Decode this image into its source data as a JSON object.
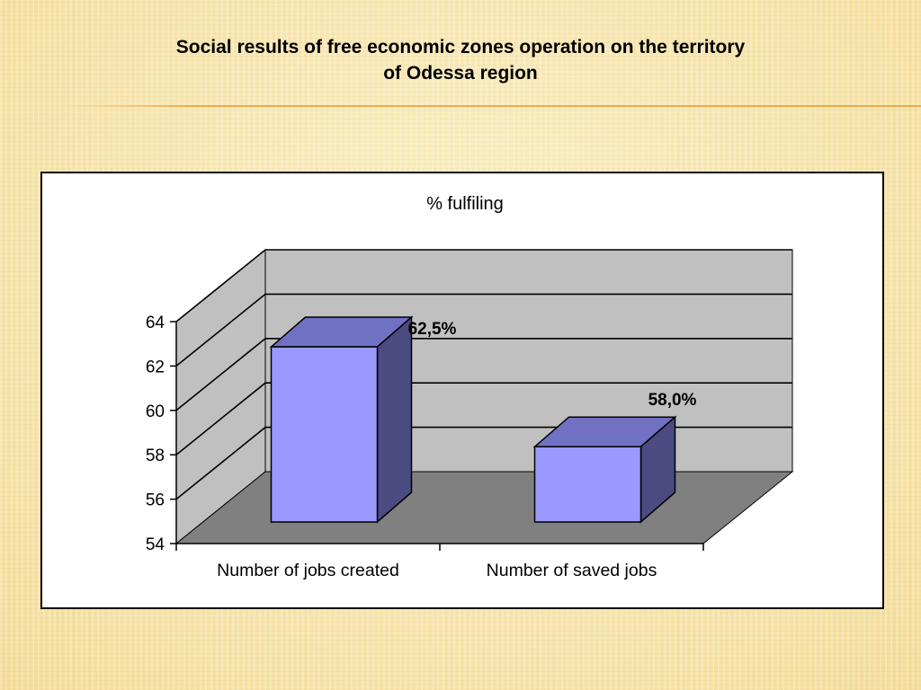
{
  "slide": {
    "title_line1": "Social results of free economic zones operation on the territory",
    "title_line2": "of Odessa region"
  },
  "chart_data": {
    "type": "bar",
    "title": "% fulfiling",
    "categories": [
      "Number of jobs created",
      "Number of saved jobs"
    ],
    "values": [
      62.5,
      58.0
    ],
    "data_labels": [
      "62,5%",
      "58,0%"
    ],
    "yticks": [
      "54",
      "56",
      "58",
      "60",
      "62",
      "64"
    ],
    "ylim": [
      54,
      64
    ],
    "grid": true,
    "legend": "none",
    "colors": {
      "bar_front": "#9999ff",
      "bar_top": "#7171c4",
      "bar_side": "#4b4b82",
      "back_wall": "#c0c0c0",
      "side_wall": "#c0c0c0",
      "floor": "#808080"
    }
  }
}
